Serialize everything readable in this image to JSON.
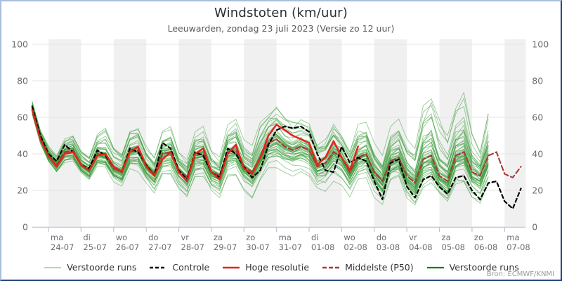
{
  "header": {
    "title": "Windstoten (km/uur)",
    "subtitle": "Leeuwarden, zondag 23 juli 2023 (Versie zo 12 uur)"
  },
  "source": {
    "label": "Bron: ECMWF/KNMI"
  },
  "legend": {
    "items": [
      {
        "label": "Verstoorde runs",
        "color": "#b4d9ab",
        "dash": "",
        "width": 2
      },
      {
        "label": "Controle",
        "color": "#000000",
        "dash": "5 3",
        "width": 2.4
      },
      {
        "label": "Hoge resolutie",
        "color": "#e1251b",
        "dash": "",
        "width": 2.6
      },
      {
        "label": "Middelste (P50)",
        "color": "#a83a3a",
        "dash": "6 3",
        "width": 2.4
      },
      {
        "label": "Verstoorde runs",
        "color": "#158015",
        "dash": "",
        "width": 2.2
      }
    ]
  },
  "colors": {
    "ensemble_line": "#349a34",
    "control_line": "#000000",
    "hires_line": "#e1251b",
    "median_line": "#a83a3a",
    "day_band": "#f0f0f0",
    "grid_line": "#e4e4e4",
    "axis_line": "#b9c6de",
    "tick_label": "#6e6e6e",
    "frame_light": "#a9bedf",
    "frame_dark": "#223f77"
  },
  "chart_data": {
    "type": "line",
    "title": "Windstoten (km/uur)",
    "xlabel": "",
    "ylabel": "km/uur",
    "ylim": [
      0,
      100
    ],
    "yticks": [
      0,
      20,
      40,
      60,
      80,
      100
    ],
    "grid": true,
    "legend_position": "bottom",
    "x_start_label": "zo 23-07 12:00",
    "x_hours": [
      0,
      6,
      12,
      18,
      24,
      30,
      36,
      42,
      48,
      54,
      60,
      66,
      72,
      78,
      84,
      90,
      96,
      102,
      108,
      114,
      120,
      126,
      132,
      138,
      144,
      150,
      156,
      162,
      168,
      174,
      180,
      186,
      192,
      198,
      204,
      210,
      216,
      222,
      228,
      234,
      240,
      246,
      252,
      258,
      264,
      270,
      276,
      282,
      288,
      294,
      300,
      306,
      312,
      318,
      324,
      330,
      336,
      342,
      348,
      354,
      360
    ],
    "day_ticks": [
      {
        "day": "ma",
        "date": "24-07",
        "hour": 12
      },
      {
        "day": "di",
        "date": "25-07",
        "hour": 36
      },
      {
        "day": "wo",
        "date": "26-07",
        "hour": 60
      },
      {
        "day": "do",
        "date": "27-07",
        "hour": 84
      },
      {
        "day": "vr",
        "date": "28-07",
        "hour": 108
      },
      {
        "day": "za",
        "date": "29-07",
        "hour": 132
      },
      {
        "day": "zo",
        "date": "30-07",
        "hour": 156
      },
      {
        "day": "ma",
        "date": "31-07",
        "hour": 180
      },
      {
        "day": "di",
        "date": "01-08",
        "hour": 204
      },
      {
        "day": "wo",
        "date": "02-08",
        "hour": 228
      },
      {
        "day": "do",
        "date": "03-08",
        "hour": 252
      },
      {
        "day": "vr",
        "date": "04-08",
        "hour": 276
      },
      {
        "day": "za",
        "date": "05-08",
        "hour": 300
      },
      {
        "day": "zo",
        "date": "06-08",
        "hour": 324
      },
      {
        "day": "ma",
        "date": "07-08",
        "hour": 348
      }
    ],
    "series": [
      {
        "name": "Hoge resolutie",
        "style": "solid",
        "color": "#e1251b",
        "values": [
          64,
          48,
          39,
          33,
          40,
          41,
          34,
          31,
          39,
          40,
          33,
          30,
          41,
          44,
          33,
          28,
          37,
          41,
          30,
          25,
          40,
          43,
          30,
          26,
          40,
          45,
          32,
          29,
          38,
          50,
          56,
          53,
          50,
          48,
          46,
          34,
          38,
          47,
          38,
          31,
          44
        ]
      },
      {
        "name": "Controle",
        "style": "dashed",
        "color": "#000000",
        "values": [
          66,
          50,
          40,
          36,
          45,
          41,
          34,
          32,
          42,
          39,
          33,
          30,
          43,
          41,
          34,
          28,
          46,
          43,
          31,
          26,
          41,
          39,
          30,
          27,
          43,
          40,
          33,
          27,
          31,
          45,
          53,
          55,
          54,
          55,
          52,
          40,
          31,
          30,
          44,
          35,
          38,
          36,
          25,
          15,
          35,
          37,
          22,
          16,
          26,
          28,
          22,
          18,
          27,
          28,
          20,
          15,
          24,
          25,
          14,
          10,
          21
        ]
      },
      {
        "name": "Middelste (P50)",
        "style": "dashed",
        "color": "#a83a3a",
        "values": [
          65,
          49,
          39,
          34,
          41,
          42,
          34,
          31,
          40,
          39,
          32,
          30,
          41,
          42,
          33,
          29,
          40,
          41,
          31,
          27,
          39,
          40,
          30,
          28,
          41,
          42,
          33,
          30,
          38,
          46,
          48,
          44,
          42,
          44,
          42,
          33,
          35,
          41,
          38,
          30,
          38,
          40,
          30,
          25,
          36,
          38,
          28,
          24,
          37,
          39,
          28,
          25,
          39,
          41,
          30,
          28,
          39,
          41,
          29,
          27,
          33
        ]
      }
    ],
    "ensemble": {
      "name": "Verstoorde runs",
      "count": 50,
      "min": [
        60,
        45,
        35,
        29,
        34,
        35,
        29,
        25,
        33,
        32,
        25,
        22,
        31,
        30,
        24,
        18,
        28,
        28,
        21,
        16,
        27,
        27,
        20,
        16,
        27,
        28,
        20,
        16,
        24,
        30,
        30,
        28,
        28,
        29,
        27,
        20,
        20,
        26,
        22,
        15,
        24,
        25,
        16,
        10,
        22,
        24,
        14,
        10,
        20,
        21,
        14,
        10,
        20,
        21,
        13,
        9,
        18,
        19,
        10,
        8,
        16
      ],
      "max": [
        70,
        55,
        46,
        40,
        50,
        52,
        44,
        40,
        52,
        55,
        45,
        42,
        55,
        57,
        46,
        40,
        55,
        57,
        44,
        40,
        54,
        56,
        44,
        40,
        58,
        62,
        48,
        44,
        60,
        66,
        70,
        66,
        62,
        64,
        60,
        50,
        52,
        62,
        55,
        46,
        60,
        62,
        48,
        42,
        60,
        64,
        52,
        46,
        70,
        78,
        60,
        50,
        68,
        74,
        50,
        40,
        62
      ]
    }
  }
}
